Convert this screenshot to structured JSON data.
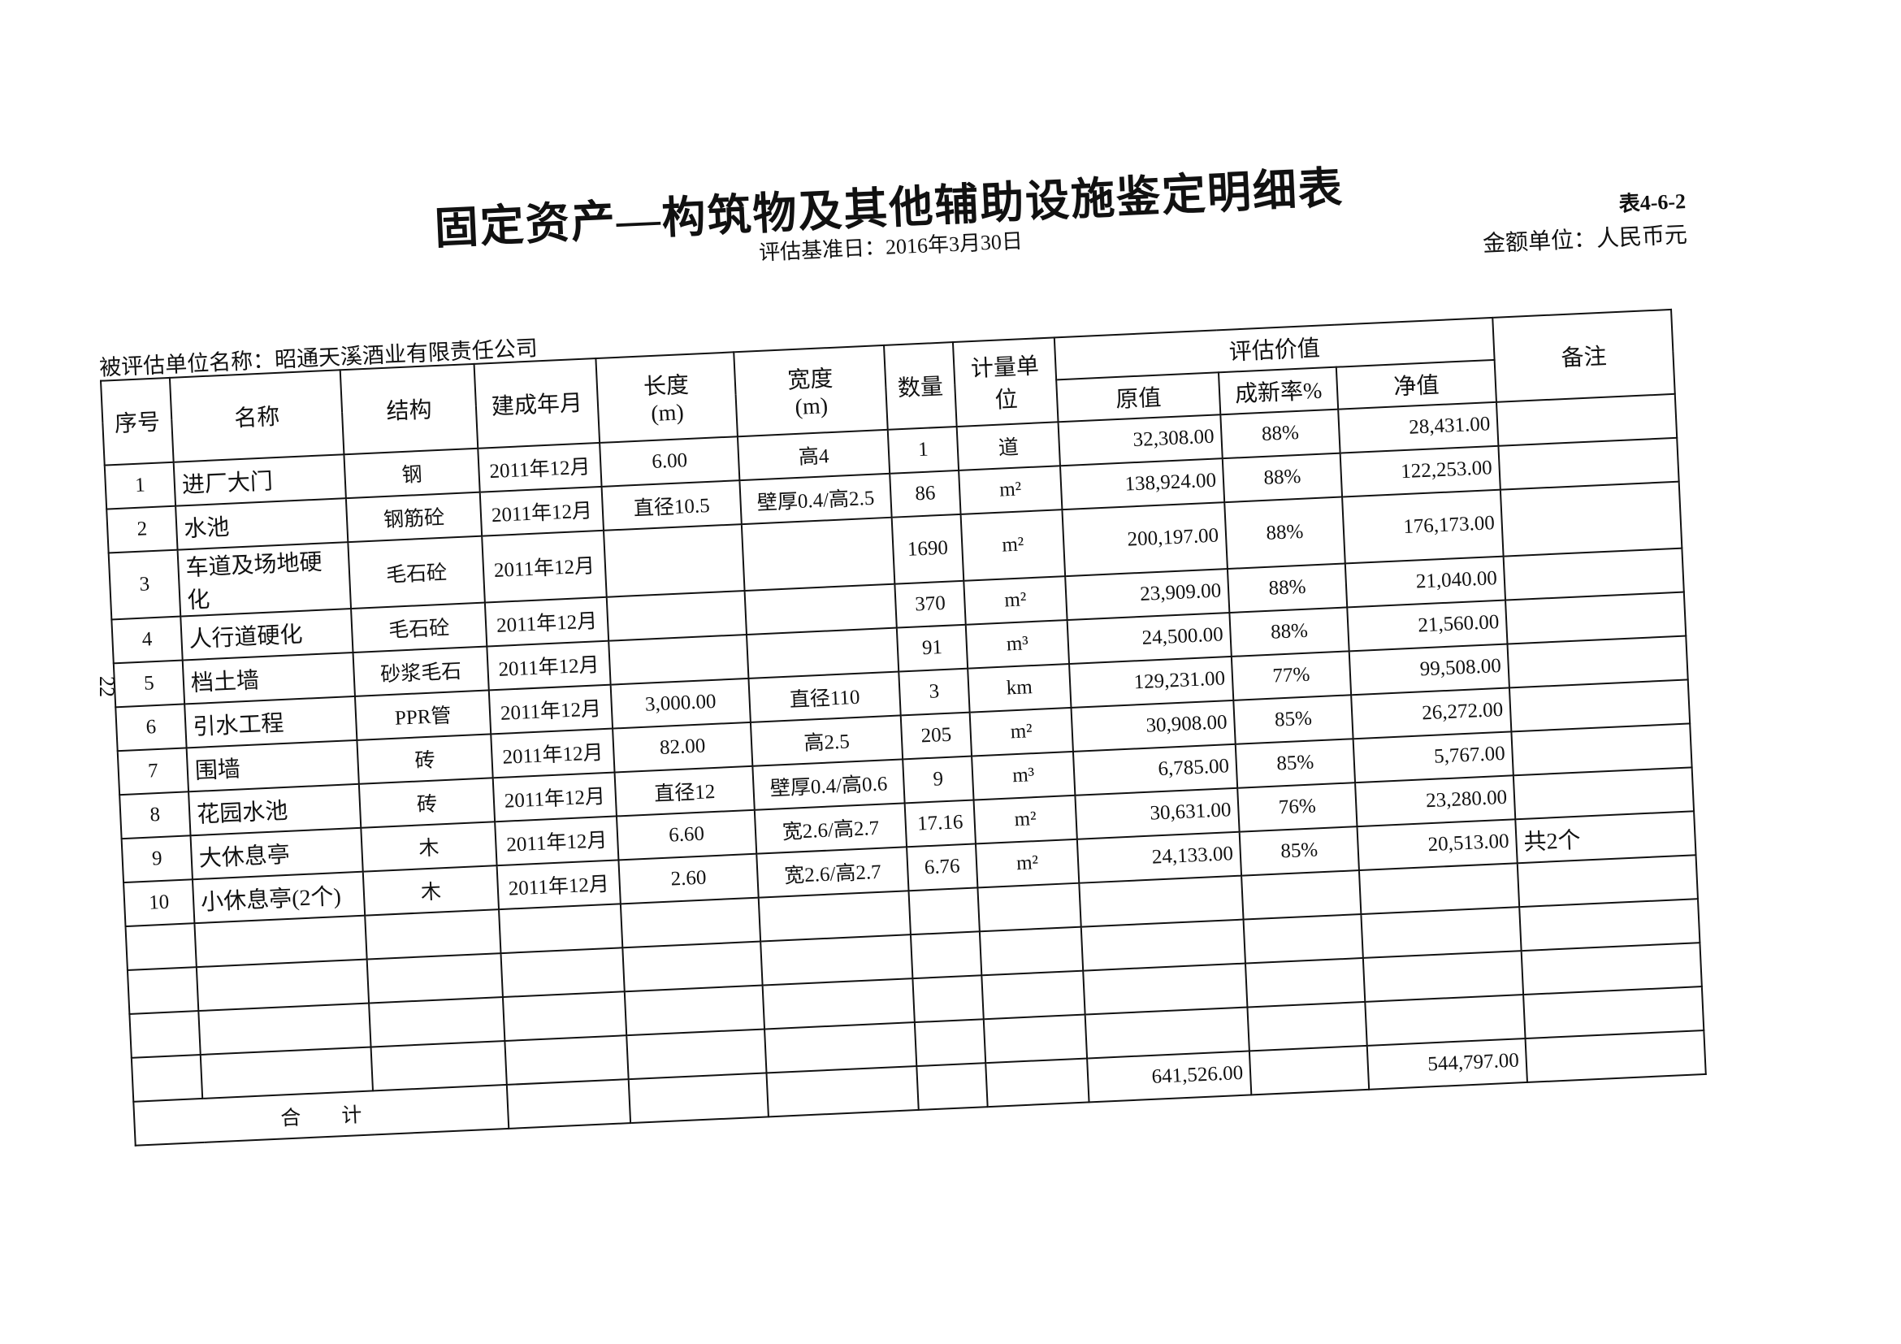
{
  "header": {
    "title": "固定资产—构筑物及其他辅助设施鉴定明细表",
    "base_date": "评估基准日：2016年3月30日",
    "table_no": "表4-6-2",
    "currency_unit": "金额单位：人民币元",
    "company": "被评估单位名称：昭通天溪酒业有限责任公司"
  },
  "table": {
    "columns": [
      "序号",
      "名称",
      "结构",
      "建成年月",
      "长度\n(m)",
      "宽度\n(m)",
      "数量",
      "计量单位",
      "原值",
      "成新率%",
      "净值",
      "备注"
    ],
    "group_header": "评估价值",
    "rows": [
      [
        "1",
        "进厂大门",
        "钢",
        "2011年12月",
        "6.00",
        "高4",
        "1",
        "道",
        "32,308.00",
        "88%",
        "28,431.00",
        null
      ],
      [
        "2",
        "水池",
        "钢筋砼",
        "2011年12月",
        "直径10.5",
        "壁厚0.4/高2.5",
        "86",
        "m²",
        "138,924.00",
        "88%",
        "122,253.00",
        null
      ],
      [
        "3",
        "车道及场地硬化",
        "毛石砼",
        "2011年12月",
        null,
        null,
        "1690",
        "m²",
        "200,197.00",
        "88%",
        "176,173.00",
        null
      ],
      [
        "4",
        "人行道硬化",
        "毛石砼",
        "2011年12月",
        null,
        null,
        "370",
        "m²",
        "23,909.00",
        "88%",
        "21,040.00",
        null
      ],
      [
        "5",
        "档土墙",
        "砂浆毛石",
        "2011年12月",
        null,
        null,
        "91",
        "m³",
        "24,500.00",
        "88%",
        "21,560.00",
        null
      ],
      [
        "6",
        "引水工程",
        "PPR管",
        "2011年12月",
        "3,000.00",
        "直径110",
        "3",
        "km",
        "129,231.00",
        "77%",
        "99,508.00",
        null
      ],
      [
        "7",
        "围墙",
        "砖",
        "2011年12月",
        "82.00",
        "高2.5",
        "205",
        "m²",
        "30,908.00",
        "85%",
        "26,272.00",
        null
      ],
      [
        "8",
        "花园水池",
        "砖",
        "2011年12月",
        "直径12",
        "壁厚0.4/高0.6",
        "9",
        "m³",
        "6,785.00",
        "85%",
        "5,767.00",
        null
      ],
      [
        "9",
        "大休息亭",
        "木",
        "2011年12月",
        "6.60",
        "宽2.6/高2.7",
        "17.16",
        "m²",
        "30,631.00",
        "76%",
        "23,280.00",
        null
      ],
      [
        "10",
        "小休息亭(2个)",
        "木",
        "2011年12月",
        "2.60",
        "宽2.6/高2.7",
        "6.76",
        "m²",
        "24,133.00",
        "85%",
        "20,513.00",
        "共2个"
      ]
    ],
    "total": {
      "label": "合　　计",
      "original_value": "641,526.00",
      "net_value": "544,797.00"
    }
  },
  "page_number": "22"
}
